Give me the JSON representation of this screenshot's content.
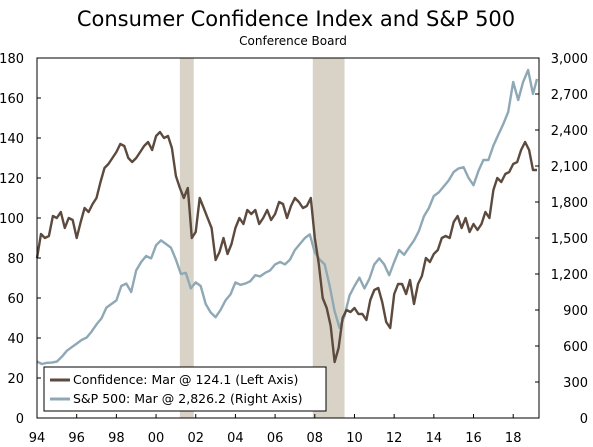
{
  "chart_data": {
    "type": "line",
    "title": "Consumer Confidence Index and S&P 500",
    "subtitle": "Conference Board",
    "x_range": [
      1994,
      2019.3
    ],
    "x_ticks": [
      1994,
      1996,
      1998,
      2000,
      2002,
      2004,
      2006,
      2008,
      2010,
      2012,
      2014,
      2016,
      2018
    ],
    "x_tick_labels": [
      "94",
      "96",
      "98",
      "00",
      "02",
      "04",
      "06",
      "08",
      "10",
      "12",
      "14",
      "16",
      "18"
    ],
    "y_left": {
      "range": [
        0,
        180
      ],
      "ticks": [
        0,
        20,
        40,
        60,
        80,
        100,
        120,
        140,
        160,
        180
      ],
      "tick_labels": [
        "0",
        "20",
        "40",
        "60",
        "80",
        "100",
        "120",
        "140",
        "160",
        "180"
      ]
    },
    "y_right": {
      "range": [
        0,
        3000
      ],
      "ticks": [
        0,
        300,
        600,
        900,
        1200,
        1500,
        1800,
        2100,
        2400,
        2700,
        3000
      ],
      "tick_labels": [
        "0",
        "300",
        "600",
        "900",
        "1,200",
        "1,500",
        "1,800",
        "2,100",
        "2,400",
        "2,700",
        "3,000"
      ]
    },
    "recessions": [
      [
        2001.2,
        2001.9
      ],
      [
        2007.9,
        2009.5
      ]
    ],
    "recession_color": "#d8d3c6",
    "series": [
      {
        "name": "Confidence: Mar @ 124.1 (Left Axis)",
        "axis": "left",
        "color": "#5b4a3d",
        "x": [
          1994.0,
          1994.2,
          1994.4,
          1994.6,
          1994.8,
          1995.0,
          1995.2,
          1995.4,
          1995.6,
          1995.8,
          1996.0,
          1996.2,
          1996.4,
          1996.6,
          1996.8,
          1997.0,
          1997.2,
          1997.4,
          1997.6,
          1997.8,
          1998.0,
          1998.2,
          1998.4,
          1998.6,
          1998.8,
          1999.0,
          1999.2,
          1999.4,
          1999.6,
          1999.8,
          2000.0,
          2000.2,
          2000.4,
          2000.6,
          2000.8,
          2001.0,
          2001.2,
          2001.4,
          2001.6,
          2001.8,
          2002.0,
          2002.2,
          2002.4,
          2002.6,
          2002.8,
          2003.0,
          2003.2,
          2003.4,
          2003.6,
          2003.8,
          2004.0,
          2004.2,
          2004.4,
          2004.6,
          2004.8,
          2005.0,
          2005.2,
          2005.4,
          2005.6,
          2005.8,
          2006.0,
          2006.2,
          2006.4,
          2006.6,
          2006.8,
          2007.0,
          2007.2,
          2007.4,
          2007.6,
          2007.8,
          2008.0,
          2008.2,
          2008.4,
          2008.6,
          2008.8,
          2009.0,
          2009.2,
          2009.4,
          2009.6,
          2009.8,
          2010.0,
          2010.2,
          2010.4,
          2010.6,
          2010.8,
          2011.0,
          2011.2,
          2011.4,
          2011.6,
          2011.8,
          2012.0,
          2012.2,
          2012.4,
          2012.6,
          2012.8,
          2013.0,
          2013.2,
          2013.4,
          2013.6,
          2013.8,
          2014.0,
          2014.2,
          2014.4,
          2014.6,
          2014.8,
          2015.0,
          2015.2,
          2015.4,
          2015.6,
          2015.8,
          2016.0,
          2016.2,
          2016.4,
          2016.6,
          2016.8,
          2017.0,
          2017.2,
          2017.4,
          2017.6,
          2017.8,
          2018.0,
          2018.2,
          2018.4,
          2018.6,
          2018.8,
          2019.0,
          2019.2
        ],
        "values": [
          80,
          92,
          90,
          91,
          101,
          100,
          103,
          95,
          100,
          99,
          90,
          98,
          105,
          103,
          107,
          110,
          118,
          125,
          127,
          130,
          133,
          137,
          136,
          130,
          128,
          130,
          133,
          136,
          138,
          134,
          141,
          143,
          140,
          141,
          135,
          121,
          115,
          110,
          115,
          90,
          93,
          110,
          105,
          100,
          95,
          79,
          83,
          90,
          82,
          87,
          95,
          100,
          97,
          104,
          102,
          104,
          97,
          100,
          104,
          99,
          102,
          108,
          107,
          100,
          106,
          110,
          108,
          105,
          106,
          110,
          90,
          77,
          60,
          55,
          46,
          28,
          35,
          50,
          54,
          53,
          55,
          52,
          52,
          49,
          59,
          64,
          65,
          58,
          48,
          45,
          62,
          67,
          67,
          62,
          69,
          57,
          67,
          71,
          80,
          78,
          82,
          84,
          90,
          91,
          90,
          98,
          101,
          95,
          100,
          93,
          97,
          94,
          97,
          103,
          100,
          114,
          120,
          118,
          122,
          123,
          127,
          128,
          134,
          138,
          134,
          124,
          124
        ]
      },
      {
        "name": "S&P 500: Mar @ 2,826.2 (Right Axis)",
        "axis": "right",
        "color": "#8fa8b5",
        "x": [
          1994.0,
          1994.25,
          1994.5,
          1994.75,
          1995.0,
          1995.25,
          1995.5,
          1995.75,
          1996.0,
          1996.25,
          1996.5,
          1996.75,
          1997.0,
          1997.25,
          1997.5,
          1997.75,
          1998.0,
          1998.25,
          1998.5,
          1998.75,
          1999.0,
          1999.25,
          1999.5,
          1999.75,
          2000.0,
          2000.25,
          2000.5,
          2000.75,
          2001.0,
          2001.25,
          2001.5,
          2001.75,
          2002.0,
          2002.25,
          2002.5,
          2002.75,
          2003.0,
          2003.25,
          2003.5,
          2003.75,
          2004.0,
          2004.25,
          2004.5,
          2004.75,
          2005.0,
          2005.25,
          2005.5,
          2005.75,
          2006.0,
          2006.25,
          2006.5,
          2006.75,
          2007.0,
          2007.25,
          2007.5,
          2007.75,
          2008.0,
          2008.25,
          2008.5,
          2008.75,
          2009.0,
          2009.25,
          2009.5,
          2009.75,
          2010.0,
          2010.25,
          2010.5,
          2010.75,
          2011.0,
          2011.25,
          2011.5,
          2011.75,
          2012.0,
          2012.25,
          2012.5,
          2012.75,
          2013.0,
          2013.25,
          2013.5,
          2013.75,
          2014.0,
          2014.25,
          2014.5,
          2014.75,
          2015.0,
          2015.25,
          2015.5,
          2015.75,
          2016.0,
          2016.25,
          2016.5,
          2016.75,
          2017.0,
          2017.25,
          2017.5,
          2017.75,
          2018.0,
          2018.25,
          2018.5,
          2018.75,
          2019.0,
          2019.2
        ],
        "values": [
          470,
          450,
          460,
          462,
          470,
          510,
          560,
          590,
          620,
          650,
          670,
          720,
          780,
          830,
          920,
          950,
          980,
          1100,
          1120,
          1050,
          1230,
          1300,
          1350,
          1330,
          1440,
          1480,
          1450,
          1420,
          1320,
          1200,
          1210,
          1080,
          1130,
          1100,
          950,
          880,
          840,
          900,
          980,
          1030,
          1130,
          1110,
          1120,
          1140,
          1190,
          1180,
          1210,
          1230,
          1280,
          1300,
          1280,
          1320,
          1400,
          1450,
          1500,
          1530,
          1380,
          1320,
          1280,
          1100,
          890,
          750,
          850,
          1020,
          1100,
          1170,
          1080,
          1160,
          1280,
          1330,
          1280,
          1190,
          1300,
          1400,
          1360,
          1420,
          1480,
          1560,
          1680,
          1750,
          1850,
          1880,
          1930,
          1980,
          2050,
          2080,
          2090,
          2000,
          1940,
          2060,
          2150,
          2150,
          2270,
          2360,
          2450,
          2550,
          2800,
          2650,
          2800,
          2900,
          2700,
          2826
        ]
      }
    ],
    "legend": {
      "placement": "bottom-left",
      "entries": [
        "Confidence: Mar @ 124.1 (Left Axis)",
        "S&P 500: Mar @ 2,826.2 (Right Axis)"
      ]
    },
    "grid": false
  }
}
